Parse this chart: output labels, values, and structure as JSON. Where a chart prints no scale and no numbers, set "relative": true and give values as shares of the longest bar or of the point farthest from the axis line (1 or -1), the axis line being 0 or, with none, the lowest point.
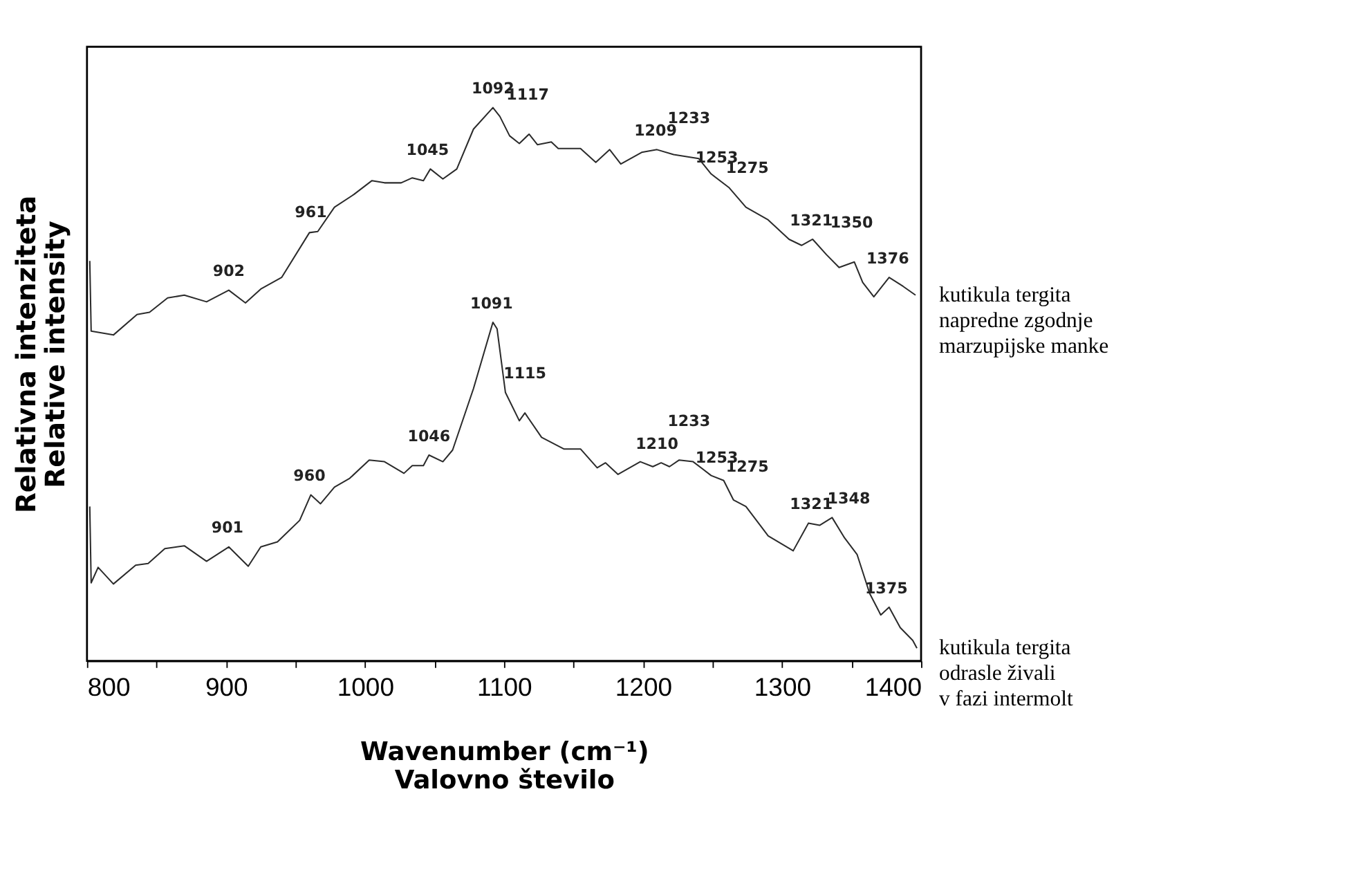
{
  "chart_data": {
    "type": "line",
    "relative": true,
    "xlabel": "Wavenumber (cm⁻¹)\nValovno število",
    "ylabel": "Relativna intenziteta\nRelative intensity",
    "xlim": [
      800,
      1400
    ],
    "xticks": [
      800,
      {
        "value": 850,
        "label": null
      },
      900,
      {
        "value": 950,
        "label": null
      },
      1000,
      {
        "value": 1050,
        "label": null
      },
      1100,
      {
        "value": 1150,
        "label": null
      },
      1200,
      {
        "value": 1250,
        "label": null
      },
      1300,
      {
        "value": 1350,
        "label": null
      },
      1400
    ],
    "grid": false,
    "legend": false,
    "marker": "none",
    "line_style": "solid",
    "series": [
      {
        "name": "kutikula tergita\nnapredne zgodnje\nmarzupijske manke",
        "color": "#2b2b2b",
        "x": [
          802,
          803,
          819,
          836,
          845,
          858,
          870,
          886,
          902,
          914,
          925,
          940,
          960,
          966,
          978,
          992,
          1005,
          1014,
          1026,
          1034,
          1042,
          1047,
          1056,
          1066,
          1078,
          1092,
          1097,
          1104,
          1111,
          1118,
          1124,
          1134,
          1139,
          1155,
          1166,
          1176,
          1184,
          1199,
          1210,
          1222,
          1240,
          1249,
          1262,
          1274,
          1290,
          1305,
          1314,
          1322,
          1332,
          1341,
          1352,
          1358,
          1366,
          1377,
          1387,
          1396
        ],
        "values": [
          0.723,
          0.596,
          0.589,
          0.626,
          0.63,
          0.656,
          0.661,
          0.649,
          0.67,
          0.647,
          0.672,
          0.693,
          0.774,
          0.776,
          0.82,
          0.843,
          0.868,
          0.864,
          0.864,
          0.873,
          0.868,
          0.889,
          0.871,
          0.889,
          0.961,
          1.0,
          0.984,
          0.949,
          0.935,
          0.952,
          0.933,
          0.938,
          0.926,
          0.926,
          0.901,
          0.924,
          0.898,
          0.919,
          0.924,
          0.915,
          0.908,
          0.88,
          0.855,
          0.82,
          0.797,
          0.762,
          0.751,
          0.762,
          0.734,
          0.711,
          0.721,
          0.684,
          0.658,
          0.693,
          0.677,
          0.661
        ]
      },
      {
        "name": "kutikula tergita\nodrasle živali\nv fazi intermolt",
        "color": "#2b2b2b",
        "x": [
          802,
          803,
          808,
          819,
          835,
          844,
          856,
          870,
          886,
          902,
          916,
          925,
          937,
          953,
          961,
          968,
          978,
          989,
          1003,
          1014,
          1028,
          1034,
          1042,
          1046,
          1056,
          1063,
          1078,
          1092,
          1095,
          1101,
          1111,
          1115,
          1127,
          1143,
          1155,
          1167,
          1173,
          1182,
          1198,
          1207,
          1213,
          1219,
          1226,
          1236,
          1249,
          1258,
          1265,
          1274,
          1290,
          1308,
          1319,
          1327,
          1336,
          1345,
          1354,
          1363,
          1371,
          1377,
          1385,
          1394,
          1397
        ],
        "values": [
          0.279,
          0.141,
          0.169,
          0.139,
          0.173,
          0.176,
          0.203,
          0.208,
          0.18,
          0.206,
          0.171,
          0.206,
          0.215,
          0.254,
          0.3,
          0.284,
          0.314,
          0.33,
          0.363,
          0.36,
          0.339,
          0.353,
          0.353,
          0.372,
          0.36,
          0.381,
          0.492,
          0.612,
          0.6,
          0.485,
          0.434,
          0.448,
          0.404,
          0.383,
          0.383,
          0.349,
          0.358,
          0.337,
          0.36,
          0.351,
          0.358,
          0.351,
          0.363,
          0.36,
          0.335,
          0.326,
          0.291,
          0.279,
          0.226,
          0.199,
          0.249,
          0.245,
          0.259,
          0.222,
          0.192,
          0.122,
          0.083,
          0.097,
          0.06,
          0.037,
          0.023
        ]
      }
    ],
    "annotations": [
      {
        "text": "902",
        "x": 902,
        "y": 0.67
      },
      {
        "text": "961",
        "x": 961,
        "y": 0.776
      },
      {
        "text": "1045",
        "x": 1045,
        "y": 0.889
      },
      {
        "text": "1092",
        "x": 1092,
        "y": 1.0
      },
      {
        "text": "1117",
        "x": 1117,
        "y": 0.952
      },
      {
        "text": "1209",
        "x": 1209,
        "y": 0.924
      },
      {
        "text": "1233",
        "x": 1233,
        "y": 0.91
      },
      {
        "text": "1253",
        "x": 1253,
        "y": 0.875
      },
      {
        "text": "1275",
        "x": 1275,
        "y": 0.82
      },
      {
        "text": "1321",
        "x": 1321,
        "y": 0.762
      },
      {
        "text": "1350",
        "x": 1350,
        "y": 0.721
      },
      {
        "text": "1376",
        "x": 1376,
        "y": 0.693
      },
      {
        "text": "901",
        "x": 901,
        "y": 0.206
      },
      {
        "text": "960",
        "x": 960,
        "y": 0.3
      },
      {
        "text": "1046",
        "x": 1046,
        "y": 0.372
      },
      {
        "text": "1091",
        "x": 1091,
        "y": 0.612
      },
      {
        "text": "1115",
        "x": 1115,
        "y": 0.448
      },
      {
        "text": "1210",
        "x": 1210,
        "y": 0.358
      },
      {
        "text": "1233",
        "x": 1233,
        "y": 0.362
      },
      {
        "text": "1253",
        "x": 1253,
        "y": 0.333
      },
      {
        "text": "1275",
        "x": 1275,
        "y": 0.279
      },
      {
        "text": "1321",
        "x": 1321,
        "y": 0.249
      },
      {
        "text": "1348",
        "x": 1348,
        "y": 0.222
      },
      {
        "text": "1375",
        "x": 1375,
        "y": 0.097
      }
    ]
  }
}
